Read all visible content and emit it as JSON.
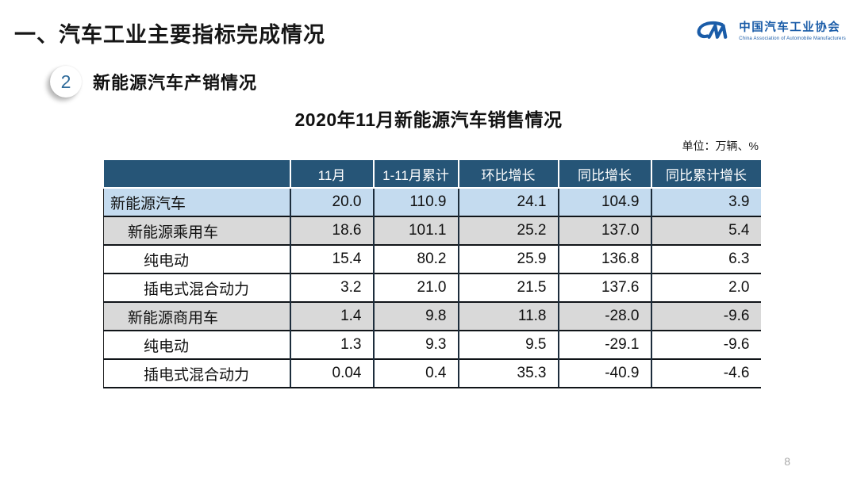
{
  "slide": {
    "title": "一、汽车工业主要指标完成情况",
    "page_number": "8"
  },
  "logo": {
    "monogram": "CM",
    "name_cn": "中国汽车工业协会",
    "name_en": "China Association of Automobile Manufacturers"
  },
  "section": {
    "number": "2",
    "label": "新能源汽车产销情况"
  },
  "table": {
    "title": "2020年11月新能源汽车销售情况",
    "unit_label": "单位：万辆、%",
    "columns": [
      "",
      "11月",
      "1-11月累计",
      "环比增长",
      "同比增长",
      "同比累计增长"
    ],
    "rows": [
      {
        "label": "新能源汽车",
        "level": "total",
        "indent": 1,
        "values": [
          "20.0",
          "110.9",
          "24.1",
          "104.9",
          "3.9"
        ]
      },
      {
        "label": "新能源乘用车",
        "level": "group",
        "indent": 2,
        "values": [
          "18.6",
          "101.1",
          "25.2",
          "137.0",
          "5.4"
        ]
      },
      {
        "label": "纯电动",
        "level": "sub",
        "indent": 3,
        "values": [
          "15.4",
          "80.2",
          "25.9",
          "136.8",
          "6.3"
        ]
      },
      {
        "label": "插电式混合动力",
        "level": "sub",
        "indent": 3,
        "values": [
          "3.2",
          "21.0",
          "21.5",
          "137.6",
          "2.0"
        ]
      },
      {
        "label": "新能源商用车",
        "level": "group",
        "indent": 2,
        "values": [
          "1.4",
          "9.8",
          "11.8",
          "-28.0",
          "-9.6"
        ]
      },
      {
        "label": "纯电动",
        "level": "sub",
        "indent": 3,
        "values": [
          "1.3",
          "9.3",
          "9.5",
          "-29.1",
          "-9.6"
        ]
      },
      {
        "label": "插电式混合动力",
        "level": "sub",
        "indent": 3,
        "values": [
          "0.04",
          "0.4",
          "35.3",
          "-40.9",
          "-4.6"
        ]
      }
    ]
  },
  "colors": {
    "header_bg": "#265577",
    "row_total_bg": "#C4DBEF",
    "row_group_bg": "#D9D9D9",
    "logo_blue": "#1A5CA8",
    "badge_number": "#2F6B9A"
  }
}
